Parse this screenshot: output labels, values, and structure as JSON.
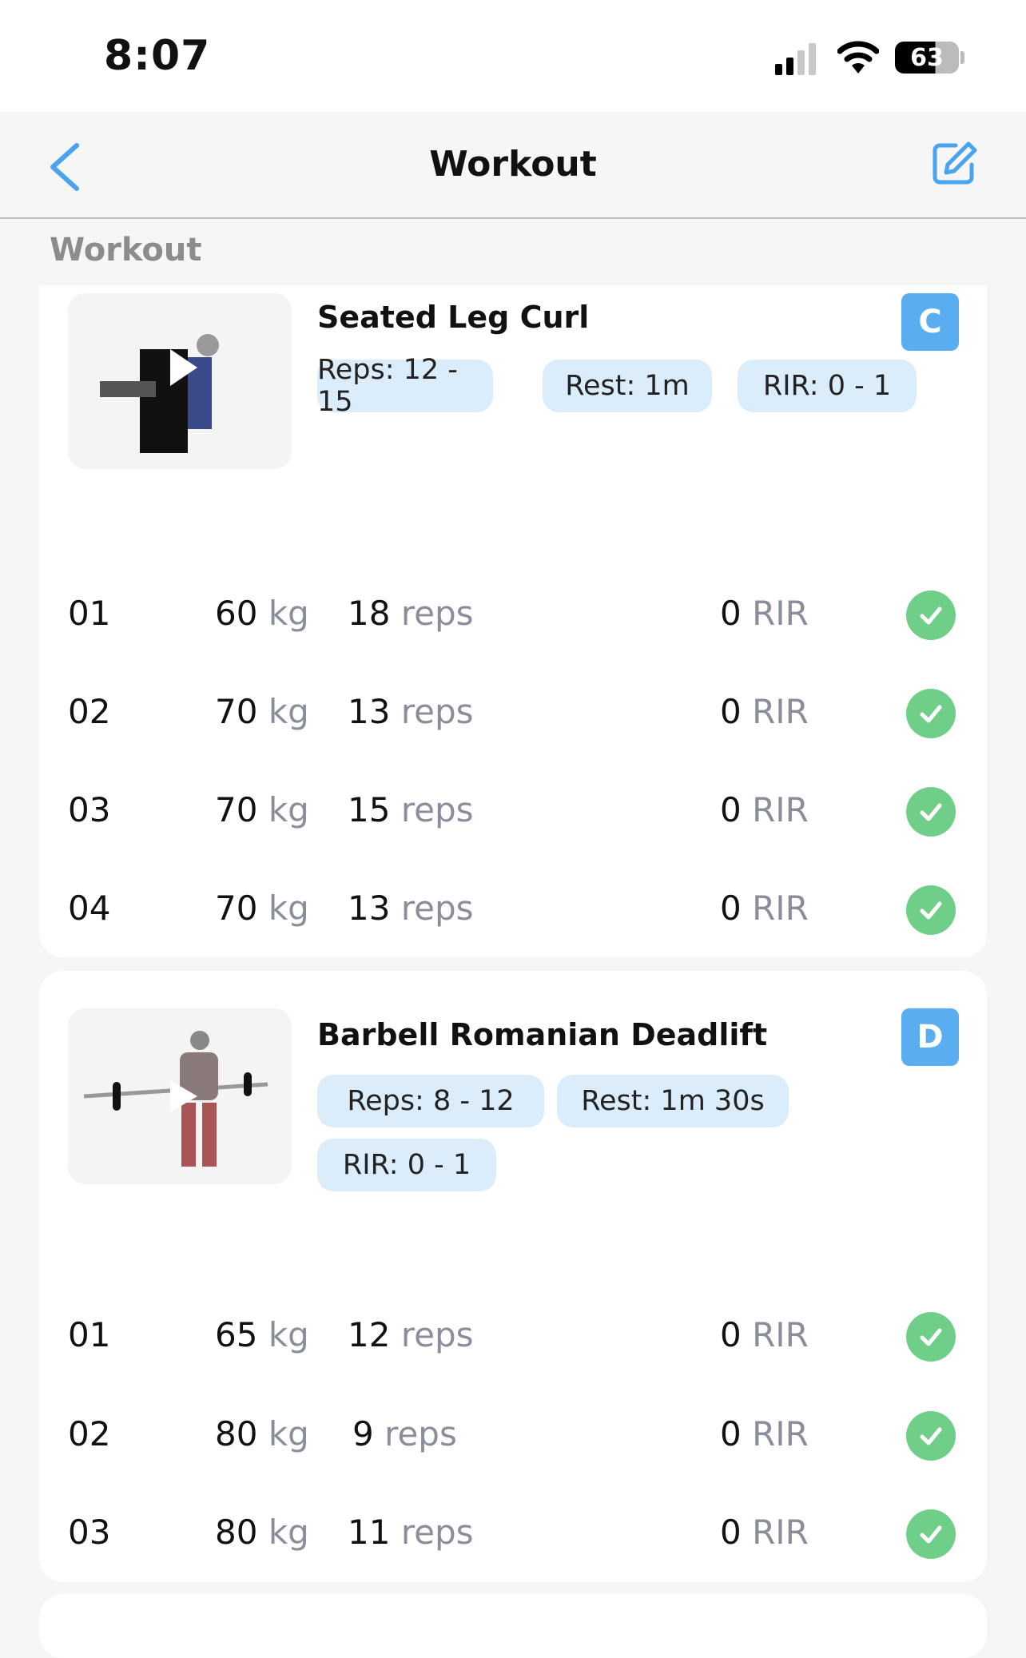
{
  "status_bar": {
    "time": "8:07",
    "battery": "63"
  },
  "nav": {
    "title": "Workout",
    "back_icon": "chevron-left-icon",
    "edit_icon": "edit-icon",
    "accent": "#4aa3ee"
  },
  "section_title": "Workout",
  "exercises": [
    {
      "name": "Seated Leg Curl",
      "badge": "C",
      "chips": [
        "Reps: 12 - 15",
        "Rest: 1m",
        "RIR: 0 - 1"
      ],
      "sets": [
        {
          "num": "01",
          "weight": "60",
          "reps": "18",
          "rir": "0"
        },
        {
          "num": "02",
          "weight": "70",
          "reps": "13",
          "rir": "0"
        },
        {
          "num": "03",
          "weight": "70",
          "reps": "15",
          "rir": "0"
        },
        {
          "num": "04",
          "weight": "70",
          "reps": "13",
          "rir": "0"
        }
      ]
    },
    {
      "name": "Barbell Romanian Deadlift",
      "badge": "D",
      "chips": [
        "Reps: 8 - 12",
        "Rest: 1m 30s",
        "RIR: 0 - 1"
      ],
      "sets": [
        {
          "num": "01",
          "weight": "65",
          "reps": "12",
          "rir": "0"
        },
        {
          "num": "02",
          "weight": "80",
          "reps": "9",
          "rir": "0"
        },
        {
          "num": "03",
          "weight": "80",
          "reps": "11",
          "rir": "0"
        }
      ]
    }
  ],
  "units": {
    "weight": "kg",
    "reps": "reps",
    "rir": "RIR"
  }
}
